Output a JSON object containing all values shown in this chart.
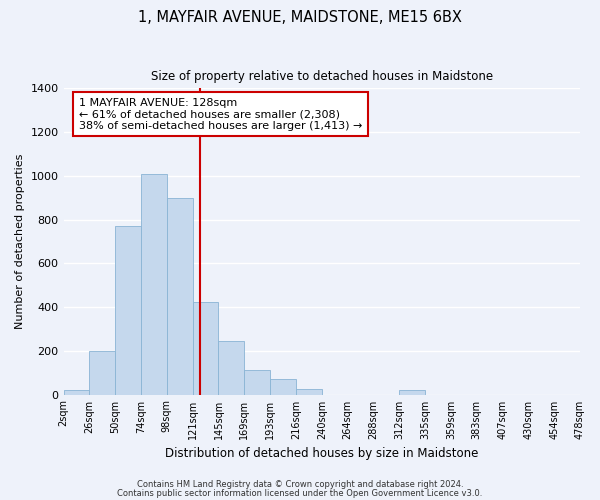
{
  "title": "1, MAYFAIR AVENUE, MAIDSTONE, ME15 6BX",
  "subtitle": "Size of property relative to detached houses in Maidstone",
  "xlabel": "Distribution of detached houses by size in Maidstone",
  "ylabel": "Number of detached properties",
  "bar_color": "#c5d8ed",
  "bar_edge_color": "#8ab4d4",
  "background_color": "#eef2fa",
  "tick_labels": [
    "2sqm",
    "26sqm",
    "50sqm",
    "74sqm",
    "98sqm",
    "121sqm",
    "145sqm",
    "169sqm",
    "193sqm",
    "216sqm",
    "240sqm",
    "264sqm",
    "288sqm",
    "312sqm",
    "335sqm",
    "359sqm",
    "383sqm",
    "407sqm",
    "430sqm",
    "454sqm",
    "478sqm"
  ],
  "bar_heights": [
    20,
    200,
    770,
    1010,
    900,
    425,
    245,
    110,
    70,
    25,
    0,
    0,
    0,
    20,
    0,
    0,
    0,
    0,
    0,
    0
  ],
  "ylim": [
    0,
    1400
  ],
  "yticks": [
    0,
    200,
    400,
    600,
    800,
    1000,
    1200,
    1400
  ],
  "annotation_title": "1 MAYFAIR AVENUE: 128sqm",
  "annotation_line1": "← 61% of detached houses are smaller (2,308)",
  "annotation_line2": "38% of semi-detached houses are larger (1,413) →",
  "annotation_box_color": "#ffffff",
  "annotation_box_edge": "#cc0000",
  "line_color": "#cc0000",
  "footnote1": "Contains HM Land Registry data © Crown copyright and database right 2024.",
  "footnote2": "Contains public sector information licensed under the Open Government Licence v3.0."
}
